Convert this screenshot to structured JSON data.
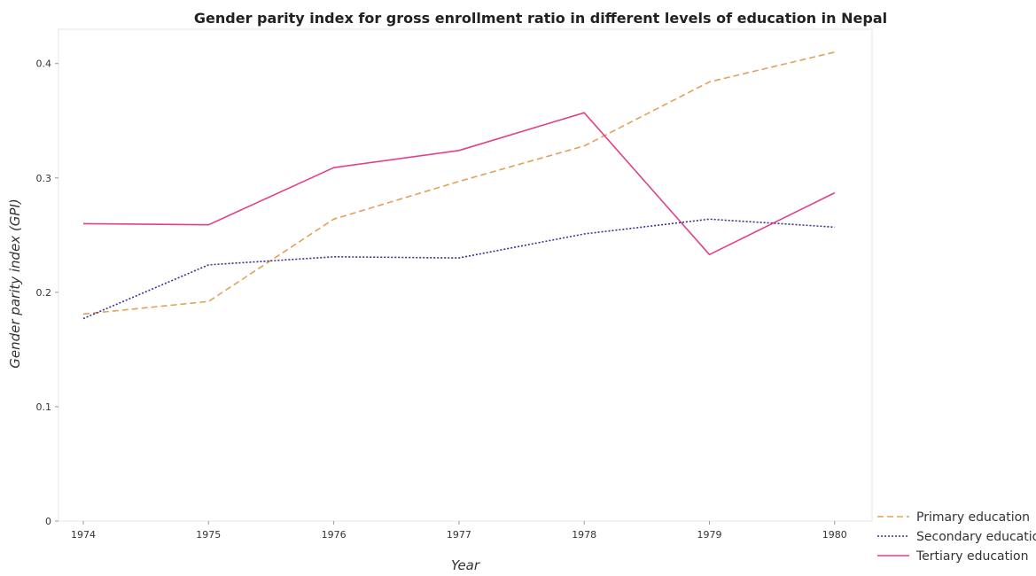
{
  "chart_data": {
    "type": "line",
    "title": "Gender parity index for gross enrollment ratio in different levels of education in Nepal",
    "xlabel": "Year",
    "ylabel": "Gender parity index (GPI)",
    "x": [
      "1974",
      "1975",
      "1976",
      "1977",
      "1978",
      "1979",
      "1980"
    ],
    "yticks": [
      "0",
      "0.1",
      "0.2",
      "0.3",
      "0.4"
    ],
    "ylim": [
      0,
      0.43
    ],
    "grid": false,
    "legend_position": "bottom-right",
    "series": [
      {
        "name": "Primary education",
        "color": "#e0a25b",
        "dash": "dashed",
        "values": [
          0.181,
          0.192,
          0.264,
          0.297,
          0.328,
          0.384,
          0.41
        ]
      },
      {
        "name": "Secondary education",
        "color": "#3d2f8f",
        "dash": "dotted",
        "values": [
          0.177,
          0.224,
          0.231,
          0.23,
          0.251,
          0.264,
          0.257
        ]
      },
      {
        "name": "Tertiary education",
        "color": "#e0408a",
        "dash": "solid",
        "values": [
          0.26,
          0.259,
          0.309,
          0.324,
          0.357,
          0.233,
          0.287
        ]
      }
    ]
  }
}
